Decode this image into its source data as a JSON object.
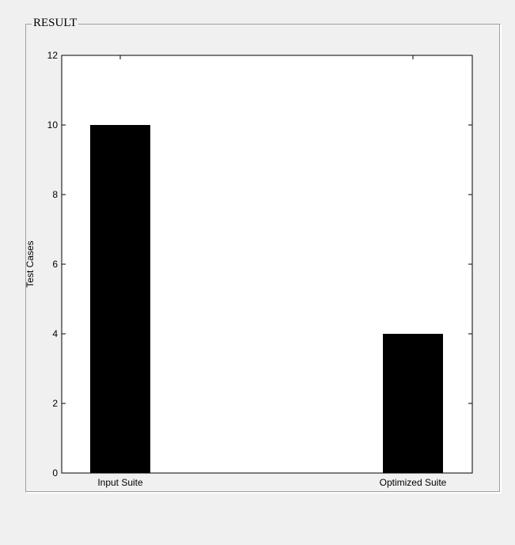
{
  "panel": {
    "title": "RESULT"
  },
  "colors": {
    "background": "#f0f0f0",
    "plot_background": "#ffffff",
    "bar": "#000000"
  },
  "chart_data": {
    "type": "bar",
    "categories": [
      "Input Suite",
      "Optimized Suite"
    ],
    "values": [
      10,
      4
    ],
    "title": "",
    "xlabel": "",
    "ylabel": "Test Cases",
    "ylim": [
      0,
      12
    ],
    "yticks": [
      0,
      2,
      4,
      6,
      8,
      10,
      12
    ],
    "grid": false,
    "legend": "none"
  }
}
